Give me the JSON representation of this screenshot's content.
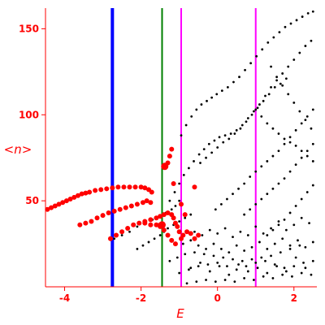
{
  "chart_data": {
    "type": "scatter",
    "title": "",
    "xlabel": "E",
    "ylabel": "<n>",
    "xlim": [
      -4.5,
      2.6
    ],
    "ylim": [
      0,
      162
    ],
    "xticks": [
      -4,
      -2,
      0,
      2
    ],
    "yticks": [
      50,
      100,
      150
    ],
    "grid": false,
    "colors": {
      "axes": "#ff0000",
      "tick_labels": "#ff0000",
      "axis_labels": "#ff0000",
      "black_points": "#000000",
      "red_points": "#ff0000"
    },
    "vertical_lines": [
      {
        "x": -2.75,
        "color": "#0000ff",
        "width": 4
      },
      {
        "x": -1.45,
        "color": "#008000",
        "width": 2
      },
      {
        "x": -0.95,
        "color": "#ff00ff",
        "width": 2
      },
      {
        "x": 1.0,
        "color": "#ff00ff",
        "width": 2
      }
    ],
    "series": [
      {
        "color": "#000000",
        "size": 1.4,
        "points": [
          [
            -1.25,
            50
          ],
          [
            -1.12,
            55
          ],
          [
            -1.0,
            60
          ],
          [
            -0.88,
            65
          ],
          [
            -0.75,
            69
          ],
          [
            -0.62,
            73
          ],
          [
            -0.48,
            77
          ],
          [
            -0.35,
            80
          ],
          [
            -0.22,
            83
          ],
          [
            -0.08,
            85
          ],
          [
            0.05,
            87
          ],
          [
            0.2,
            88
          ],
          [
            0.35,
            89
          ],
          [
            0.5,
            91
          ],
          [
            0.65,
            94
          ],
          [
            0.8,
            98
          ],
          [
            0.95,
            102
          ],
          [
            1.1,
            106
          ],
          [
            1.25,
            111
          ],
          [
            1.4,
            116
          ],
          [
            1.55,
            120
          ],
          [
            1.7,
            124
          ],
          [
            1.85,
            128
          ],
          [
            2.0,
            132
          ],
          [
            2.15,
            136
          ],
          [
            2.3,
            140
          ],
          [
            2.45,
            143
          ],
          [
            -0.95,
            88
          ],
          [
            -0.82,
            94
          ],
          [
            -0.68,
            99
          ],
          [
            -0.55,
            103
          ],
          [
            -0.42,
            106
          ],
          [
            -0.28,
            108
          ],
          [
            -0.15,
            110
          ],
          [
            -0.02,
            112
          ],
          [
            0.12,
            114
          ],
          [
            0.27,
            116
          ],
          [
            0.42,
            119
          ],
          [
            0.57,
            122
          ],
          [
            0.72,
            126
          ],
          [
            0.87,
            130
          ],
          [
            1.02,
            134
          ],
          [
            1.17,
            138
          ],
          [
            1.32,
            142
          ],
          [
            1.47,
            145
          ],
          [
            1.62,
            148
          ],
          [
            1.77,
            151
          ],
          [
            1.92,
            153
          ],
          [
            2.07,
            155
          ],
          [
            2.22,
            157
          ],
          [
            2.37,
            159
          ],
          [
            2.5,
            160
          ],
          [
            -0.45,
            72
          ],
          [
            -0.3,
            75
          ],
          [
            -0.15,
            78
          ],
          [
            0.0,
            81
          ],
          [
            0.15,
            84
          ],
          [
            0.3,
            86
          ],
          [
            0.45,
            89
          ],
          [
            0.6,
            92
          ],
          [
            0.75,
            96
          ],
          [
            0.9,
            100
          ],
          [
            1.05,
            104
          ],
          [
            1.2,
            108
          ],
          [
            1.35,
            112
          ],
          [
            1.5,
            116
          ],
          [
            1.65,
            118
          ],
          [
            1.8,
            121
          ],
          [
            -0.05,
            45
          ],
          [
            0.1,
            48
          ],
          [
            0.25,
            51
          ],
          [
            0.4,
            54
          ],
          [
            0.55,
            57
          ],
          [
            0.7,
            60
          ],
          [
            0.85,
            64
          ],
          [
            1.0,
            67
          ],
          [
            1.15,
            70
          ],
          [
            1.3,
            73
          ],
          [
            1.45,
            76
          ],
          [
            1.6,
            79
          ],
          [
            1.75,
            83
          ],
          [
            1.9,
            87
          ],
          [
            2.05,
            91
          ],
          [
            2.2,
            95
          ],
          [
            2.35,
            99
          ],
          [
            2.5,
            103
          ],
          [
            0.7,
            42
          ],
          [
            0.85,
            45
          ],
          [
            1.0,
            48
          ],
          [
            1.15,
            51
          ],
          [
            1.3,
            54
          ],
          [
            1.45,
            57
          ],
          [
            1.6,
            60
          ],
          [
            1.75,
            63
          ],
          [
            1.9,
            67
          ],
          [
            2.05,
            71
          ],
          [
            2.2,
            75
          ],
          [
            2.35,
            79
          ],
          [
            2.5,
            83
          ],
          [
            1.3,
            30
          ],
          [
            1.45,
            33
          ],
          [
            1.6,
            36
          ],
          [
            1.75,
            39
          ],
          [
            1.9,
            43
          ],
          [
            2.05,
            47
          ],
          [
            2.2,
            51
          ],
          [
            2.35,
            55
          ],
          [
            2.5,
            59
          ],
          [
            1.0,
            103
          ],
          [
            1.15,
            99
          ],
          [
            1.3,
            95
          ],
          [
            1.45,
            92
          ],
          [
            1.6,
            89
          ],
          [
            1.75,
            86
          ],
          [
            1.9,
            84
          ],
          [
            2.05,
            82
          ],
          [
            2.2,
            79
          ],
          [
            2.35,
            76
          ],
          [
            2.5,
            73
          ],
          [
            1.4,
            128
          ],
          [
            1.55,
            122
          ],
          [
            1.7,
            117
          ],
          [
            1.85,
            112
          ],
          [
            2.0,
            107
          ],
          [
            2.15,
            102
          ],
          [
            2.3,
            97
          ],
          [
            2.45,
            92
          ],
          [
            -2.7,
            28
          ],
          [
            -2.5,
            30
          ],
          [
            -2.3,
            32
          ],
          [
            -2.1,
            35
          ],
          [
            -1.9,
            37
          ],
          [
            -1.7,
            39
          ],
          [
            -1.5,
            41
          ],
          [
            -1.35,
            43
          ],
          [
            -1.2,
            45
          ],
          [
            -1.1,
            47
          ],
          [
            -1.0,
            50
          ],
          [
            -2.1,
            22
          ],
          [
            -1.95,
            24
          ],
          [
            -1.8,
            26
          ],
          [
            -1.65,
            28
          ],
          [
            -1.5,
            30
          ],
          [
            -1.4,
            32
          ],
          [
            -1.3,
            34
          ],
          [
            -1.15,
            36
          ],
          [
            -1.0,
            38
          ],
          [
            -0.85,
            40
          ],
          [
            -0.7,
            42
          ],
          [
            -1.25,
            15
          ],
          [
            -1.05,
            17
          ],
          [
            -0.85,
            19
          ],
          [
            -0.6,
            20
          ],
          [
            -0.35,
            19
          ],
          [
            -0.1,
            18
          ],
          [
            0.15,
            17
          ],
          [
            0.4,
            16
          ],
          [
            0.65,
            15
          ],
          [
            0.9,
            16
          ],
          [
            1.15,
            17
          ],
          [
            1.4,
            18
          ],
          [
            1.65,
            20
          ],
          [
            1.9,
            22
          ],
          [
            2.15,
            24
          ],
          [
            -1.0,
            8
          ],
          [
            -0.75,
            10
          ],
          [
            -0.5,
            12
          ],
          [
            -0.25,
            13
          ],
          [
            0.0,
            14
          ],
          [
            0.25,
            12
          ],
          [
            0.5,
            10
          ],
          [
            0.75,
            12
          ],
          [
            1.0,
            14
          ],
          [
            1.25,
            15
          ],
          [
            1.5,
            13
          ],
          [
            1.75,
            11
          ],
          [
            2.0,
            12
          ],
          [
            2.25,
            14
          ],
          [
            2.5,
            15
          ],
          [
            -0.9,
            25
          ],
          [
            -0.7,
            27
          ],
          [
            -0.5,
            24
          ],
          [
            -0.3,
            22
          ],
          [
            -0.1,
            25
          ],
          [
            0.1,
            22
          ],
          [
            0.3,
            20
          ],
          [
            0.5,
            24
          ],
          [
            0.7,
            21
          ],
          [
            0.9,
            23
          ],
          [
            1.1,
            26
          ],
          [
            1.3,
            22
          ],
          [
            1.5,
            25
          ],
          [
            1.7,
            28
          ],
          [
            1.9,
            24
          ],
          [
            2.1,
            27
          ],
          [
            2.3,
            23
          ],
          [
            2.5,
            26
          ],
          [
            -0.8,
            2
          ],
          [
            -0.55,
            3
          ],
          [
            -0.3,
            4
          ],
          [
            -0.05,
            3
          ],
          [
            0.2,
            4
          ],
          [
            0.45,
            3
          ],
          [
            0.7,
            5
          ],
          [
            0.95,
            4
          ],
          [
            1.2,
            6
          ],
          [
            1.45,
            5
          ],
          [
            1.7,
            7
          ],
          [
            1.95,
            6
          ],
          [
            2.2,
            8
          ],
          [
            2.45,
            7
          ],
          [
            -0.6,
            32
          ],
          [
            -0.4,
            30
          ],
          [
            -0.2,
            33
          ],
          [
            0.0,
            31
          ],
          [
            0.2,
            34
          ],
          [
            0.4,
            29
          ],
          [
            0.6,
            32
          ],
          [
            0.8,
            30
          ],
          [
            1.0,
            35
          ],
          [
            1.2,
            31
          ],
          [
            1.4,
            34
          ],
          [
            1.6,
            38
          ],
          [
            1.8,
            33
          ],
          [
            2.0,
            36
          ],
          [
            2.2,
            40
          ],
          [
            2.4,
            37
          ],
          [
            -0.7,
            11
          ],
          [
            -0.45,
            14
          ],
          [
            -0.2,
            9
          ],
          [
            0.05,
            12
          ],
          [
            0.3,
            7
          ],
          [
            0.55,
            13
          ],
          [
            0.8,
            9
          ],
          [
            1.05,
            11
          ],
          [
            1.3,
            8
          ],
          [
            1.55,
            12
          ],
          [
            1.8,
            9
          ],
          [
            2.05,
            17
          ],
          [
            2.3,
            11
          ]
        ]
      },
      {
        "color": "#ff0000",
        "size": 3,
        "points": [
          [
            -4.45,
            45
          ],
          [
            -4.35,
            46
          ],
          [
            -4.25,
            47
          ],
          [
            -4.15,
            48
          ],
          [
            -4.05,
            49
          ],
          [
            -3.95,
            50
          ],
          [
            -3.85,
            51
          ],
          [
            -3.75,
            52
          ],
          [
            -3.65,
            53
          ],
          [
            -3.55,
            54
          ],
          [
            -3.45,
            54.5
          ],
          [
            -3.35,
            55
          ],
          [
            -3.2,
            56
          ],
          [
            -3.05,
            56.5
          ],
          [
            -2.9,
            57
          ],
          [
            -2.75,
            57.5
          ],
          [
            -2.6,
            58
          ],
          [
            -2.45,
            58
          ],
          [
            -2.3,
            58
          ],
          [
            -2.15,
            58
          ],
          [
            -2.0,
            58
          ],
          [
            -1.9,
            57.5
          ],
          [
            -1.8,
            56.5
          ],
          [
            -1.72,
            55
          ],
          [
            -3.6,
            36
          ],
          [
            -3.45,
            37
          ],
          [
            -3.3,
            38
          ],
          [
            -3.15,
            40
          ],
          [
            -3.0,
            41.5
          ],
          [
            -2.85,
            43
          ],
          [
            -2.7,
            44
          ],
          [
            -2.55,
            45
          ],
          [
            -2.4,
            46
          ],
          [
            -2.25,
            47
          ],
          [
            -2.1,
            48
          ],
          [
            -1.95,
            49
          ],
          [
            -1.85,
            50
          ],
          [
            -1.75,
            49
          ],
          [
            -2.8,
            28
          ],
          [
            -2.65,
            30
          ],
          [
            -2.5,
            32
          ],
          [
            -2.35,
            34
          ],
          [
            -2.2,
            36
          ],
          [
            -2.05,
            37
          ],
          [
            -1.9,
            38
          ],
          [
            -1.75,
            39
          ],
          [
            -1.6,
            40
          ],
          [
            -1.5,
            41
          ],
          [
            -1.4,
            42
          ],
          [
            -1.3,
            43
          ],
          [
            -1.2,
            42
          ],
          [
            -1.15,
            40
          ],
          [
            -1.1,
            37
          ],
          [
            -1.9,
            37
          ],
          [
            -1.75,
            36
          ],
          [
            -1.6,
            36
          ],
          [
            -1.5,
            35
          ],
          [
            -1.05,
            35
          ],
          [
            -1.0,
            32
          ],
          [
            -0.95,
            28
          ],
          [
            -0.9,
            30
          ],
          [
            -0.8,
            32
          ],
          [
            -0.7,
            31
          ],
          [
            -0.6,
            28
          ],
          [
            -0.5,
            30
          ],
          [
            -1.1,
            25
          ],
          [
            -1.2,
            27
          ],
          [
            -1.3,
            30
          ],
          [
            -1.4,
            33
          ],
          [
            -1.5,
            36
          ],
          [
            -1.3,
            72
          ],
          [
            -1.25,
            76
          ],
          [
            -1.2,
            80
          ],
          [
            -1.15,
            60
          ],
          [
            -0.95,
            48
          ],
          [
            -0.85,
            42
          ],
          [
            -0.6,
            58
          ]
        ]
      },
      {
        "color": "#ff0000",
        "size": 4.5,
        "points": [
          [
            -1.38,
            70
          ],
          [
            -1.45,
            36
          ]
        ]
      }
    ]
  }
}
